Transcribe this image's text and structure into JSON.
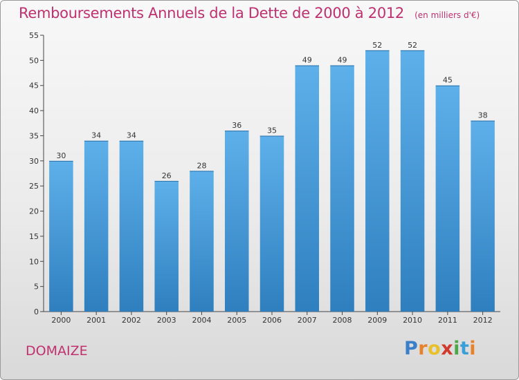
{
  "header": {
    "title": "Remboursements Annuels de la Dette de 2000 à 2012",
    "unit": "(en milliers d'€)"
  },
  "footer": {
    "commune": "DOMAIZE",
    "logo_letters": [
      "P",
      "r",
      "o",
      "x",
      "i",
      "t",
      "i"
    ],
    "logo_colors": [
      "#3a7fc8",
      "#e8822a",
      "#e8c12a",
      "#d0392b",
      "#4ca64a",
      "#3a9fd8",
      "#e8822a"
    ]
  },
  "colors": {
    "bar_top": "#5eb0ea",
    "bar_bottom": "#2f7fbf",
    "title": "#c0306f"
  },
  "chart_data": {
    "type": "bar",
    "title": "Remboursements Annuels de la Dette de 2000 à 2012",
    "subtitle": "(en milliers d'€)",
    "xlabel": "",
    "ylabel": "",
    "categories": [
      "2000",
      "2001",
      "2002",
      "2003",
      "2004",
      "2005",
      "2006",
      "2007",
      "2008",
      "2009",
      "2010",
      "2011",
      "2012"
    ],
    "values": [
      30,
      34,
      34,
      26,
      28,
      36,
      35,
      49,
      49,
      52,
      52,
      45,
      38
    ],
    "ylim": [
      0,
      55
    ],
    "yticks": [
      0,
      5,
      10,
      15,
      20,
      25,
      30,
      35,
      40,
      45,
      50,
      55
    ],
    "grid": false,
    "data_labels": true
  }
}
